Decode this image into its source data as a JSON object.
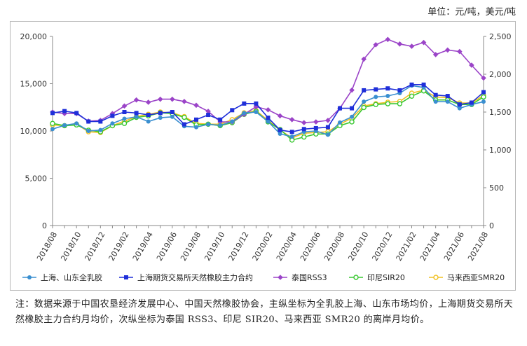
{
  "unit_label": "单位：元/吨，美元/吨",
  "note": "注：数据来源于中国农垦经济发展中心、中国天然橡胶协会，主纵坐标为全乳胶上海、山东市场均价，上海期货交易所天然橡胶主力合约月均价，次纵坐标为泰国 RSS3、印尼 SIR20、马来西亚 SMR20 的离岸月均价。",
  "chart_data": {
    "type": "line",
    "title": "",
    "xlabel": "",
    "ylabel": "",
    "y2label": "",
    "x": [
      "2018/08",
      "2018/09",
      "2018/10",
      "2018/11",
      "2018/12",
      "2019/01",
      "2019/02",
      "2019/03",
      "2019/04",
      "2019/05",
      "2019/06",
      "2019/07",
      "2019/08",
      "2019/09",
      "2019/10",
      "2019/11",
      "2019/12",
      "2020/01",
      "2020/02",
      "2020/03",
      "2020/04",
      "2020/05",
      "2020/06",
      "2020/07",
      "2020/08",
      "2020/09",
      "2020/10",
      "2020/11",
      "2020/12",
      "2021/01",
      "2021/02",
      "2021/03",
      "2021/04",
      "2021/05",
      "2021/06",
      "2021/07",
      "2021/08"
    ],
    "xticks": [
      "2018/08",
      "2018/10",
      "2018/12",
      "2019/02",
      "2019/04",
      "2019/06",
      "2019/08",
      "2019/10",
      "2019/12",
      "2020/02",
      "2020/04",
      "2020/06",
      "2020/08",
      "2020/10",
      "2020/12",
      "2021/02",
      "2021/04",
      "2021/06",
      "2021/08"
    ],
    "ylim": [
      0,
      20000
    ],
    "yticks": [
      "0",
      "5,000",
      "10,000",
      "15,000",
      "20,000"
    ],
    "y2lim": [
      0,
      2500
    ],
    "y2ticks": [
      "0",
      "500",
      "1,000",
      "1,500",
      "2,000",
      "2,500"
    ],
    "grid": false,
    "legend_position": "bottom",
    "series": [
      {
        "name": "上海、山东全乳胶",
        "axis": "left",
        "color": "#3a8fd0",
        "marker": "circle",
        "values": [
          10200,
          10600,
          10800,
          10000,
          10100,
          10800,
          11300,
          11500,
          11000,
          11400,
          11500,
          10500,
          10400,
          10700,
          10600,
          11000,
          11900,
          12000,
          11000,
          9700,
          9400,
          9900,
          10000,
          9600,
          10900,
          11500,
          13100,
          13600,
          13700,
          14000,
          14800,
          14600,
          13100,
          13100,
          12400,
          12800,
          13100
        ]
      },
      {
        "name": "上海期货交易所天然橡胶主力合约",
        "axis": "left",
        "color": "#1f2fd9",
        "marker": "square",
        "values": [
          11900,
          12100,
          11900,
          11000,
          11000,
          11600,
          12000,
          11900,
          11700,
          11900,
          12000,
          10700,
          11200,
          11700,
          11200,
          12200,
          12900,
          12900,
          11400,
          10100,
          9900,
          10200,
          10300,
          10400,
          12400,
          12400,
          14300,
          14400,
          14500,
          14300,
          14900,
          14900,
          13800,
          13700,
          12800,
          13000,
          14100
        ]
      },
      {
        "name": "泰国RSS3",
        "axis": "right",
        "color": "#9b44c8",
        "marker": "diamond",
        "values": [
          1500,
          1480,
          1480,
          1380,
          1390,
          1480,
          1580,
          1660,
          1630,
          1670,
          1670,
          1640,
          1590,
          1510,
          1370,
          1370,
          1470,
          1570,
          1530,
          1450,
          1400,
          1360,
          1370,
          1390,
          1550,
          1790,
          2200,
          2390,
          2460,
          2400,
          2370,
          2420,
          2260,
          2320,
          2300,
          2120,
          1950
        ]
      },
      {
        "name": "印尼SIR20",
        "axis": "right",
        "color": "#3ac832",
        "marker": "circle-open",
        "values": [
          1350,
          1320,
          1330,
          1260,
          1240,
          1320,
          1350,
          1430,
          1450,
          1490,
          1480,
          1430,
          1330,
          1340,
          1320,
          1360,
          1470,
          1510,
          1370,
          1270,
          1130,
          1170,
          1210,
          1210,
          1320,
          1370,
          1560,
          1600,
          1610,
          1610,
          1710,
          1780,
          1660,
          1660,
          1600,
          1600,
          1700
        ]
      },
      {
        "name": "马来西亚SMR20",
        "axis": "right",
        "color": "#f0c020",
        "marker": "circle-open",
        "values": [
          1330,
          1320,
          1340,
          1240,
          1230,
          1320,
          1380,
          1440,
          1470,
          1500,
          1490,
          1440,
          1350,
          1340,
          1340,
          1400,
          1490,
          1520,
          1390,
          1260,
          1160,
          1220,
          1230,
          1240,
          1340,
          1420,
          1580,
          1610,
          1630,
          1640,
          1750,
          1790,
          1700,
          1690,
          1620,
          1620,
          1720
        ]
      }
    ]
  }
}
